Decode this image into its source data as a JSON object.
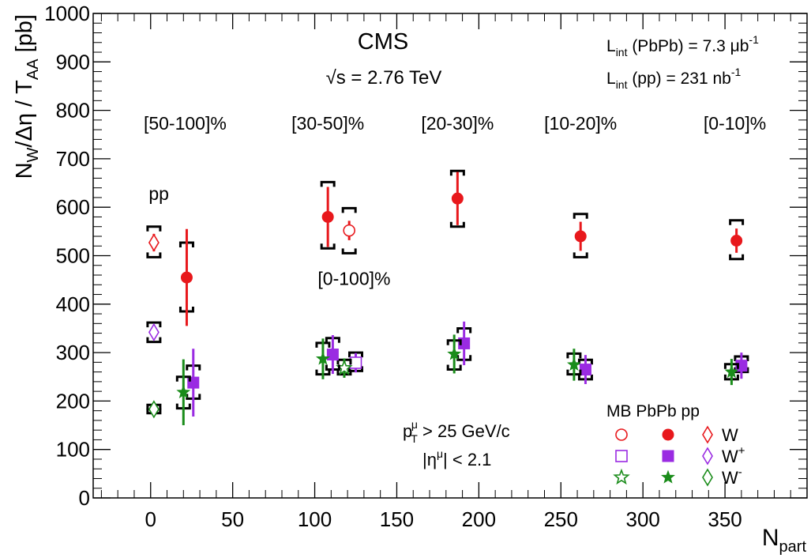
{
  "chart_data": {
    "type": "scatter",
    "experiment": "CMS",
    "energy": "√s = 2.76 TeV",
    "lumi_pbpb": {
      "prefix": "L",
      "sub": "int",
      "mid": " (PbPb) = 7.3 μb",
      "sup": "-1"
    },
    "lumi_pp": {
      "prefix": "L",
      "sub": "int",
      "mid": " (pp) = 231 nb",
      "sup": "-1"
    },
    "xlabel": {
      "main": "N",
      "sub": "part"
    },
    "ylabel": {
      "main": "N",
      "sub1": "W",
      "mid": "/Δη / T",
      "sub2": "AA",
      "tail": " [pb]"
    },
    "xlim": [
      -35,
      400
    ],
    "ylim": [
      0,
      1000
    ],
    "x_ticks": [
      0,
      50,
      100,
      150,
      200,
      250,
      300,
      350
    ],
    "y_ticks": [
      0,
      100,
      200,
      300,
      400,
      500,
      600,
      700,
      800,
      900,
      1000
    ],
    "x_tick_labels": [
      "0",
      "50",
      "100",
      "150",
      "200",
      "250",
      "300",
      "350"
    ],
    "y_tick_labels": [
      "0",
      "100",
      "200",
      "300",
      "400",
      "500",
      "600",
      "700",
      "800",
      "900",
      "1000"
    ],
    "centrality_labels": [
      {
        "text": "[50-100]%",
        "x": 21
      },
      {
        "text": "[30-50]%",
        "x": 108
      },
      {
        "text": "[20-30]%",
        "x": 187
      },
      {
        "text": "[10-20]%",
        "x": 262
      },
      {
        "text": "[0-10]%",
        "x": 356
      }
    ],
    "pp_label": {
      "text": "pp",
      "x": 5,
      "y": 615
    },
    "mb_label": {
      "text": "[0-100]%",
      "x": 124,
      "y": 440
    },
    "cuts": {
      "pt_main": "p",
      "pt_sub": "T",
      "pt_sup": "μ",
      "pt_rest": " > 25 GeV/c",
      "eta_pre": "|η",
      "eta_sup": "μ",
      "eta_rest": "| < 2.1"
    },
    "colors": {
      "W": "#e8181c",
      "Wplus": "#9a2be2",
      "Wminus": "#1a8c1a",
      "sys": "#000000"
    },
    "series": [
      {
        "name": "pp W",
        "marker": "diamond-open",
        "color": "W",
        "points": [
          {
            "x": 2,
            "y": 527,
            "err": 18,
            "sys": [
              497,
              560
            ]
          }
        ]
      },
      {
        "name": "pp W+",
        "marker": "diamond-open",
        "color": "Wplus",
        "points": [
          {
            "x": 2,
            "y": 342,
            "err": 15,
            "sys": [
              322,
              362
            ]
          }
        ]
      },
      {
        "name": "pp W-",
        "marker": "diamond-open",
        "color": "Wminus",
        "points": [
          {
            "x": 2,
            "y": 183,
            "err": 10,
            "sys": [
              175,
              192
            ]
          }
        ]
      },
      {
        "name": "MB W",
        "marker": "circle-open",
        "color": "W",
        "points": [
          {
            "x": 121,
            "y": 552,
            "err": 20,
            "sys": [
              505,
              598
            ]
          }
        ]
      },
      {
        "name": "MB W+",
        "marker": "square-open",
        "color": "Wplus",
        "points": [
          {
            "x": 125,
            "y": 279,
            "err": 20,
            "sys": [
              262,
              300
            ]
          }
        ]
      },
      {
        "name": "MB W-",
        "marker": "star-open",
        "color": "Wminus",
        "points": [
          {
            "x": 118,
            "y": 268,
            "err": 20,
            "sys": [
              255,
              285
            ]
          }
        ]
      },
      {
        "name": "PbPb W",
        "marker": "circle",
        "color": "W",
        "points": [
          {
            "x": 22,
            "y": 455,
            "err": 100,
            "sys": [
              385,
              527
            ]
          },
          {
            "x": 108,
            "y": 580,
            "err": 62,
            "sys": [
              515,
              652
            ]
          },
          {
            "x": 187,
            "y": 618,
            "err": 55,
            "sys": [
              560,
              675
            ]
          },
          {
            "x": 262,
            "y": 540,
            "err": 30,
            "sys": [
              497,
              586
            ]
          },
          {
            "x": 357,
            "y": 531,
            "err": 25,
            "sys": [
              493,
              573
            ]
          }
        ]
      },
      {
        "name": "PbPb W+",
        "marker": "square",
        "color": "Wplus",
        "points": [
          {
            "x": 26,
            "y": 238,
            "err": 70,
            "sys": [
              205,
              273
            ]
          },
          {
            "x": 111,
            "y": 296,
            "err": 40,
            "sys": [
              265,
              330
            ]
          },
          {
            "x": 191,
            "y": 319,
            "err": 45,
            "sys": [
              285,
              350
            ]
          },
          {
            "x": 265,
            "y": 265,
            "err": 30,
            "sys": [
              245,
              285
            ]
          },
          {
            "x": 360,
            "y": 273,
            "err": 27,
            "sys": [
              260,
              292
            ]
          }
        ]
      },
      {
        "name": "PbPb W-",
        "marker": "star",
        "color": "Wminus",
        "points": [
          {
            "x": 20,
            "y": 218,
            "err": 68,
            "sys": [
              185,
              250
            ]
          },
          {
            "x": 105,
            "y": 287,
            "err": 42,
            "sys": [
              255,
              320
            ]
          },
          {
            "x": 185,
            "y": 297,
            "err": 40,
            "sys": [
              265,
              325
            ]
          },
          {
            "x": 258,
            "y": 275,
            "err": 33,
            "sys": [
              255,
              298
            ]
          },
          {
            "x": 354,
            "y": 260,
            "err": 27,
            "sys": [
              245,
              276
            ]
          }
        ]
      }
    ],
    "legend": {
      "placement": "bottom-right",
      "header": "MB PbPb pp",
      "rows": [
        {
          "label": "W",
          "sup": "",
          "color": "W",
          "markers": [
            "circle-open",
            "circle",
            "diamond-open"
          ]
        },
        {
          "label": "W",
          "sup": "+",
          "color": "Wplus",
          "markers": [
            "square-open",
            "square",
            "diamond-open"
          ]
        },
        {
          "label": "W",
          "sup": "-",
          "color": "Wminus",
          "markers": [
            "star-open",
            "star",
            "diamond-open"
          ]
        }
      ]
    }
  }
}
